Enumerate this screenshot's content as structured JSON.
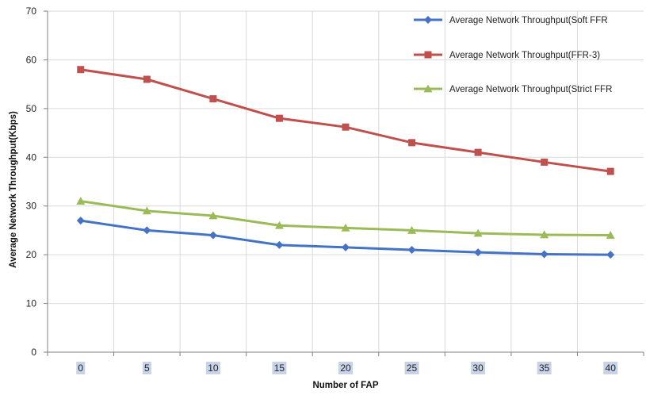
{
  "chart_data": {
    "type": "line",
    "xlabel": "Number of FAP",
    "ylabel": "Average Network Throughput(Kbps)",
    "x": [
      0,
      5,
      10,
      15,
      20,
      25,
      30,
      35,
      40
    ],
    "ylim": [
      0,
      70
    ],
    "yticks": [
      0,
      10,
      20,
      30,
      40,
      50,
      60,
      70
    ],
    "grid": true,
    "legend_position": "top-right",
    "series": [
      {
        "name": "Average Network Throughput(Soft FFR",
        "color": "#4472C4",
        "marker": "diamond",
        "values": [
          27,
          25,
          24,
          22,
          21.5,
          21,
          20.5,
          20.1,
          20
        ]
      },
      {
        "name": "Average Network Throughput(FFR-3)",
        "color": "#C0504D",
        "marker": "square",
        "values": [
          58,
          56,
          52,
          48,
          46.2,
          43,
          41,
          39,
          37.1
        ]
      },
      {
        "name": "Average Network Throughput(Strict FFR",
        "color": "#9BBB59",
        "marker": "triangle",
        "values": [
          31,
          29,
          28,
          26,
          25.5,
          25,
          24.4,
          24.1,
          24
        ]
      }
    ]
  }
}
